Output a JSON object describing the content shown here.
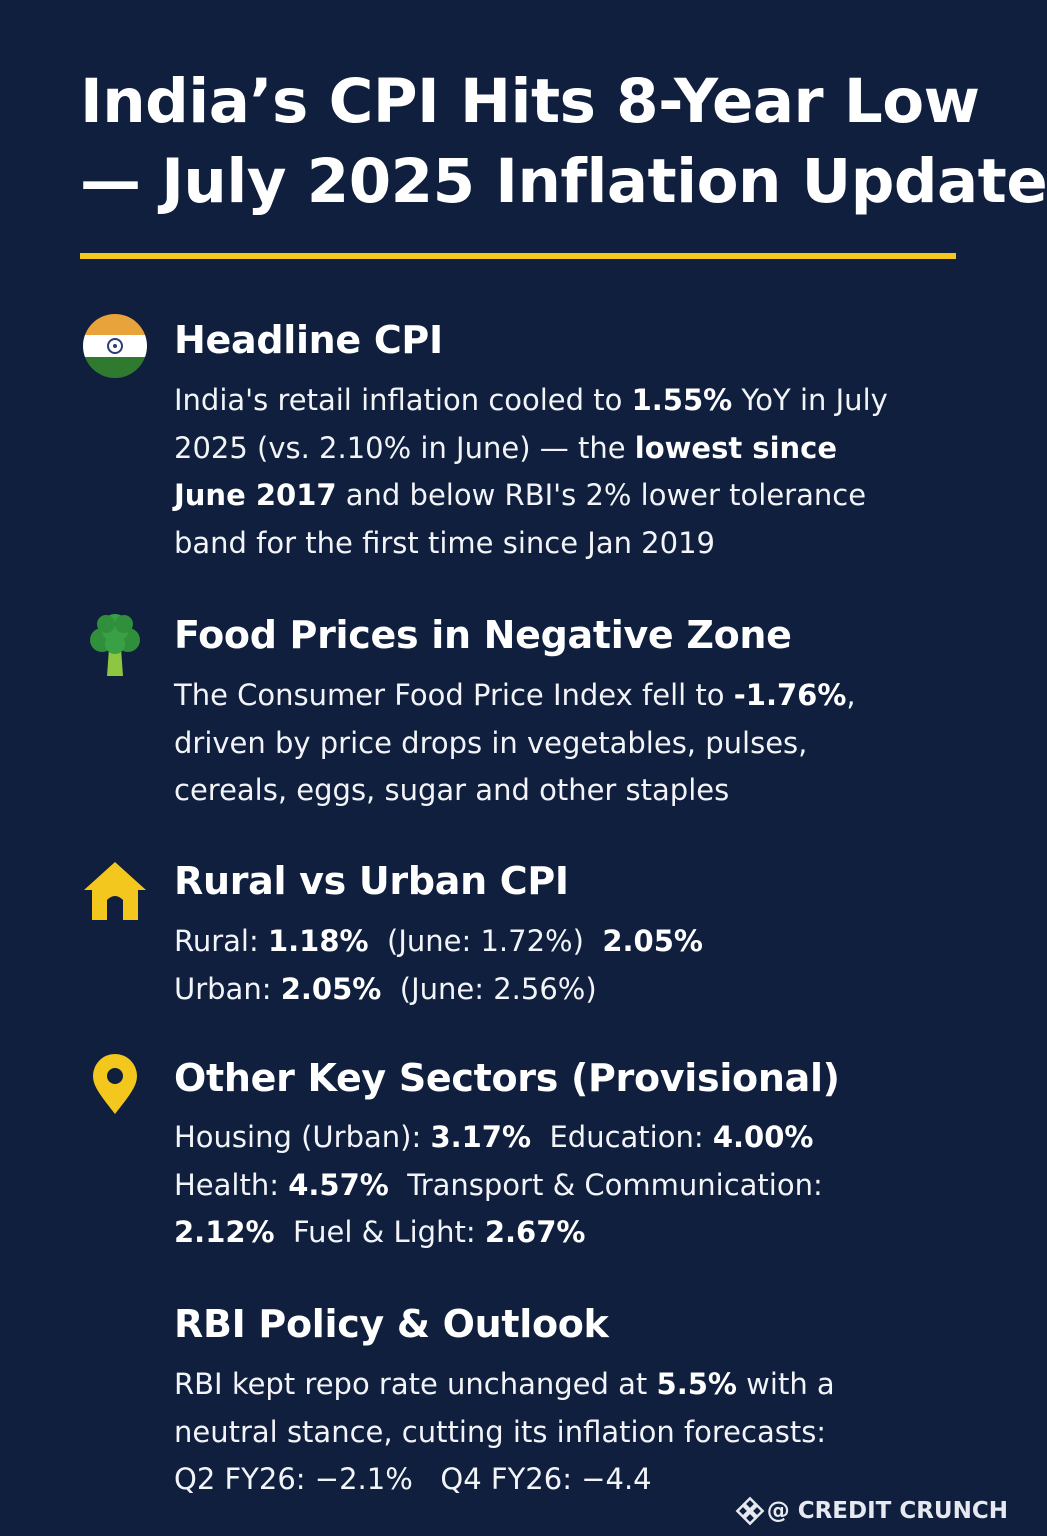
{
  "title": {
    "line1": "India’s CPI Hits 8-Year Low",
    "line2": "— July 2025 Inflation Update"
  },
  "sections": {
    "headline": {
      "icon": "india-flag-icon",
      "heading": "Headline CPI",
      "l1a": "India's retail inflation cooled to ",
      "l1b": "1.55%",
      "l1c": " YoY in July",
      "l2a": "2025 (vs. 2.10% in June) — the ",
      "l2b": "lowest since",
      "l3a": "June 2017",
      "l3b": " and below RBI's 2% lower tolerance",
      "l4": "band for the first time since Jan 2019"
    },
    "food": {
      "icon": "broccoli-icon",
      "heading": "Food Prices in Negative Zone",
      "l1a": "The Consumer Food Price Index fell to ",
      "l1b": "-1.76%",
      "l1c": ",",
      "l2": "driven by price drops in vegetables, pulses,",
      "l3": "cereals, eggs, sugar and other staples"
    },
    "rural_urban": {
      "icon": "house-icon",
      "heading": "Rural vs Urban CPI",
      "rural_label": "Rural: ",
      "rural_value": "1.18%",
      "rural_june": "(June: 1.72%)",
      "rural_extra": "2.05%",
      "urban_label": "Urban: ",
      "urban_value": "2.05%",
      "urban_june": "(June: 2.56%)"
    },
    "sectors": {
      "icon": "location-pin-icon",
      "heading": "Other Key Sectors (Provisional)",
      "housing_label": "Housing (Urban): ",
      "housing_value": "3.17%",
      "education_label": "Education: ",
      "education_value": "4.00%",
      "health_label": "Health: ",
      "health_value": "4.57%",
      "transport_label": "Transport & Communication:",
      "transport_value": "2.12%",
      "fuel_label": "Fuel & Light: ",
      "fuel_value": "2.67%"
    },
    "rbi": {
      "heading": "RBI Policy & Outlook",
      "l1a": "RBI kept repo rate unchanged at ",
      "l1b": "5.5%",
      "l1c": " with a",
      "l2": "neutral stance, cutting its inflation forecasts:",
      "q2": "Q2 FY26: −2.1%",
      "q4": "Q4 FY26: −4.4"
    }
  },
  "watermark": {
    "icon": "binance-logo-icon",
    "text": "@ CREDIT CRUNCH"
  },
  "colors": {
    "background": "#0f1f3d",
    "accent": "#f3c71d",
    "text": "#ffffff"
  }
}
